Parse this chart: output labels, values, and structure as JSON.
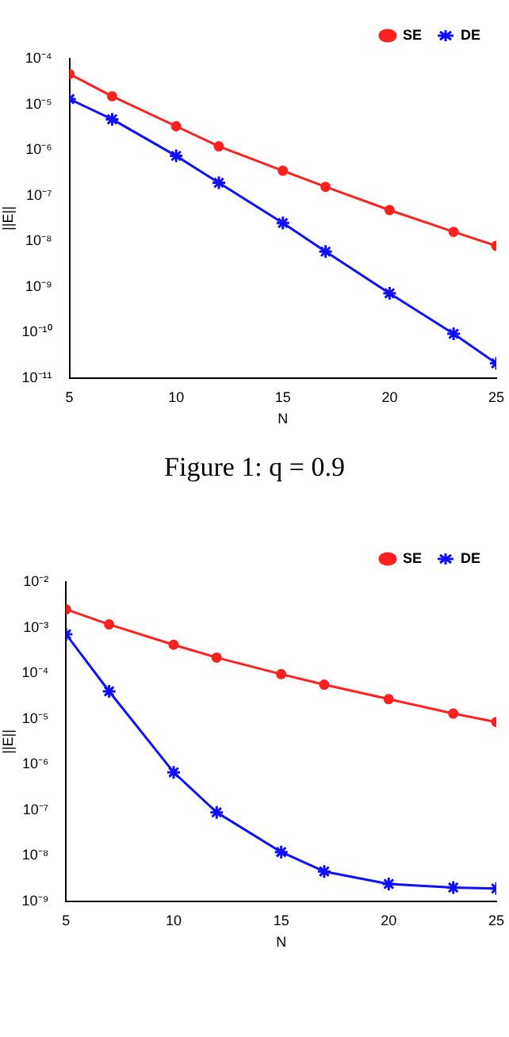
{
  "chart_data": [
    {
      "type": "line",
      "xlabel": "N",
      "ylabel": "||E||",
      "log": "y",
      "grid": false,
      "legend": "top right",
      "line_style": "solid",
      "x": [
        5,
        7,
        10,
        12,
        15,
        17,
        20,
        23,
        25
      ],
      "xlim": [
        5,
        25
      ],
      "xticks": [
        5,
        10,
        15,
        20,
        25
      ],
      "ylim": [
        1e-11,
        0.0001
      ],
      "yticks": [
        {
          "value": 1e-11,
          "label": "10⁻¹¹"
        },
        {
          "value": 1e-10,
          "label": "10⁻¹⁰"
        },
        {
          "value": 1e-09,
          "label": "10⁻⁹"
        },
        {
          "value": 1e-08,
          "label": "10⁻⁸"
        },
        {
          "value": 1e-07,
          "label": "10⁻⁷"
        },
        {
          "value": 1e-06,
          "label": "10⁻⁶"
        },
        {
          "value": 1e-05,
          "label": "10⁻⁵"
        },
        {
          "value": 0.0001,
          "label": "10⁻⁴"
        }
      ],
      "series": [
        {
          "name": "SE",
          "color": "#ff2020",
          "marker": "circle",
          "values": [
            4.6e-05,
            1.5e-05,
            3.3e-06,
            1.2e-06,
            3.5e-07,
            1.55e-07,
            4.8e-08,
            1.6e-08,
            7.9e-09
          ]
        },
        {
          "name": "DE",
          "color": "#1010ff",
          "marker": "cross",
          "values": [
            1.3e-05,
            4.7e-06,
            7.4e-07,
            1.9e-07,
            2.5e-08,
            5.9e-09,
            7.2e-10,
            9.3e-11,
            2.1e-11
          ]
        }
      ],
      "annotations": [
        "Figure 1: q = 0.9"
      ]
    },
    {
      "type": "line",
      "xlabel": "N",
      "ylabel": "||E||",
      "log": "y",
      "grid": false,
      "legend": "top right",
      "line_style": "solid",
      "x": [
        5,
        7,
        10,
        12,
        15,
        17,
        20,
        23,
        25
      ],
      "xlim": [
        5,
        25
      ],
      "xticks": [
        5,
        10,
        15,
        20,
        25
      ],
      "ylim": [
        1e-09,
        0.01
      ],
      "yticks": [
        {
          "value": 1e-09,
          "label": "10⁻⁹"
        },
        {
          "value": 1e-08,
          "label": "10⁻⁸"
        },
        {
          "value": 1e-07,
          "label": "10⁻⁷"
        },
        {
          "value": 1e-06,
          "label": "10⁻⁶"
        },
        {
          "value": 1e-05,
          "label": "10⁻⁵"
        },
        {
          "value": 0.0001,
          "label": "10⁻⁴"
        },
        {
          "value": 0.001,
          "label": "10⁻³"
        },
        {
          "value": 0.01,
          "label": "10⁻²"
        }
      ],
      "series": [
        {
          "name": "SE",
          "color": "#ff2020",
          "marker": "circle",
          "values": [
            0.0025,
            0.00117,
            0.00042,
            0.00022,
            9.5e-05,
            5.6e-05,
            2.7e-05,
            1.3e-05,
            8.5e-06
          ]
        },
        {
          "name": "DE",
          "color": "#1010ff",
          "marker": "cross",
          "values": [
            0.00071,
            4e-05,
            6.7e-07,
            8.9e-08,
            1.2e-08,
            4.5e-09,
            2.4e-09,
            2e-09,
            1.9e-09
          ]
        }
      ]
    }
  ]
}
